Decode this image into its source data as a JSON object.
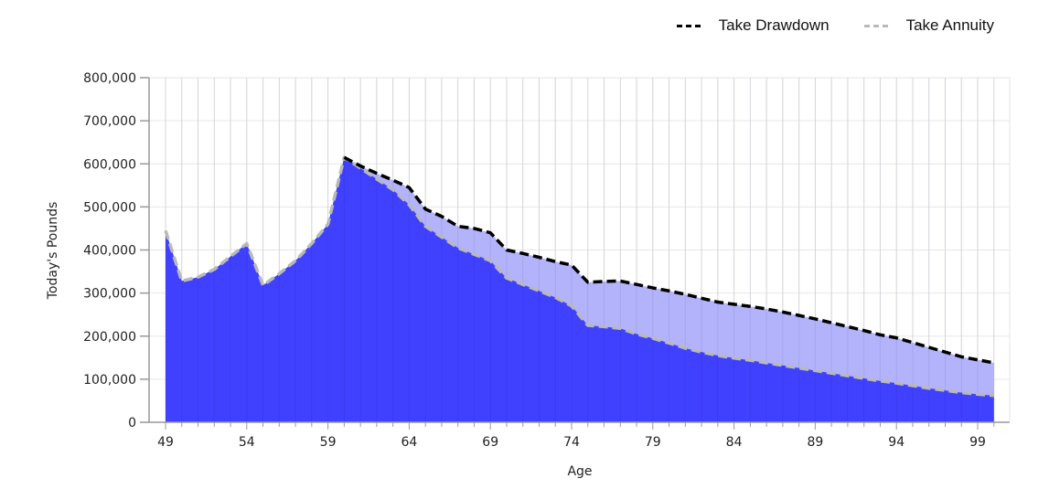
{
  "legend": {
    "items": [
      {
        "label": "Take Drawdown",
        "color": "#000000",
        "style": "dashed"
      },
      {
        "label": "Take Annuity",
        "color": "#b9b9b9",
        "style": "dashed"
      }
    ]
  },
  "axes": {
    "xlabel": "Age",
    "ylabel": "Today's Pounds",
    "xticks": [
      "49",
      "54",
      "59",
      "64",
      "69",
      "74",
      "79",
      "84",
      "89",
      "94",
      "99"
    ],
    "yticks": [
      "0",
      "100,000",
      "200,000",
      "300,000",
      "400,000",
      "500,000",
      "600,000",
      "700,000",
      "800,000"
    ]
  },
  "colors": {
    "annuity_fill": "#4040ff",
    "gap_fill": "#b3b3fb",
    "drawdown_line": "#000000",
    "annuity_line": "#b9b9b9",
    "grid": "#e6e6e6"
  },
  "chart_data": {
    "type": "area",
    "title": "",
    "xlabel": "Age",
    "ylabel": "Today's Pounds",
    "xlim": [
      49,
      100
    ],
    "ylim": [
      0,
      800000
    ],
    "grid": true,
    "legend_position": "top-right",
    "x": [
      49,
      50,
      51,
      52,
      53,
      54,
      55,
      56,
      57,
      58,
      59,
      60,
      61,
      62,
      63,
      64,
      65,
      66,
      67,
      68,
      69,
      70,
      71,
      72,
      73,
      74,
      75,
      76,
      77,
      78,
      79,
      80,
      81,
      82,
      83,
      84,
      85,
      86,
      87,
      88,
      89,
      90,
      91,
      92,
      93,
      94,
      95,
      96,
      97,
      98,
      99,
      100
    ],
    "series": [
      {
        "name": "Take Drawdown",
        "values": [
          445000,
          328000,
          337000,
          355000,
          385000,
          415000,
          318000,
          345000,
          375000,
          415000,
          460000,
          615000,
          595000,
          578000,
          562000,
          545000,
          495000,
          478000,
          455000,
          450000,
          440000,
          400000,
          392000,
          383000,
          373000,
          365000,
          325000,
          327000,
          328000,
          320000,
          312000,
          305000,
          297000,
          288000,
          279000,
          274000,
          269000,
          263000,
          256000,
          248000,
          240000,
          231000,
          222000,
          213000,
          203000,
          196000,
          185000,
          174000,
          163000,
          152000,
          145000,
          138000
        ]
      },
      {
        "name": "Take Annuity",
        "values": [
          445000,
          328000,
          337000,
          355000,
          385000,
          415000,
          318000,
          345000,
          375000,
          415000,
          460000,
          615000,
          590000,
          565000,
          540000,
          505000,
          455000,
          430000,
          405000,
          390000,
          375000,
          335000,
          320000,
          305000,
          290000,
          270000,
          225000,
          222000,
          218000,
          205000,
          195000,
          184000,
          172000,
          163000,
          155000,
          149000,
          144000,
          138000,
          132000,
          126000,
          120000,
          114000,
          108000,
          102000,
          96000,
          91000,
          85000,
          79000,
          74000,
          69000,
          65000,
          62000
        ]
      }
    ]
  }
}
